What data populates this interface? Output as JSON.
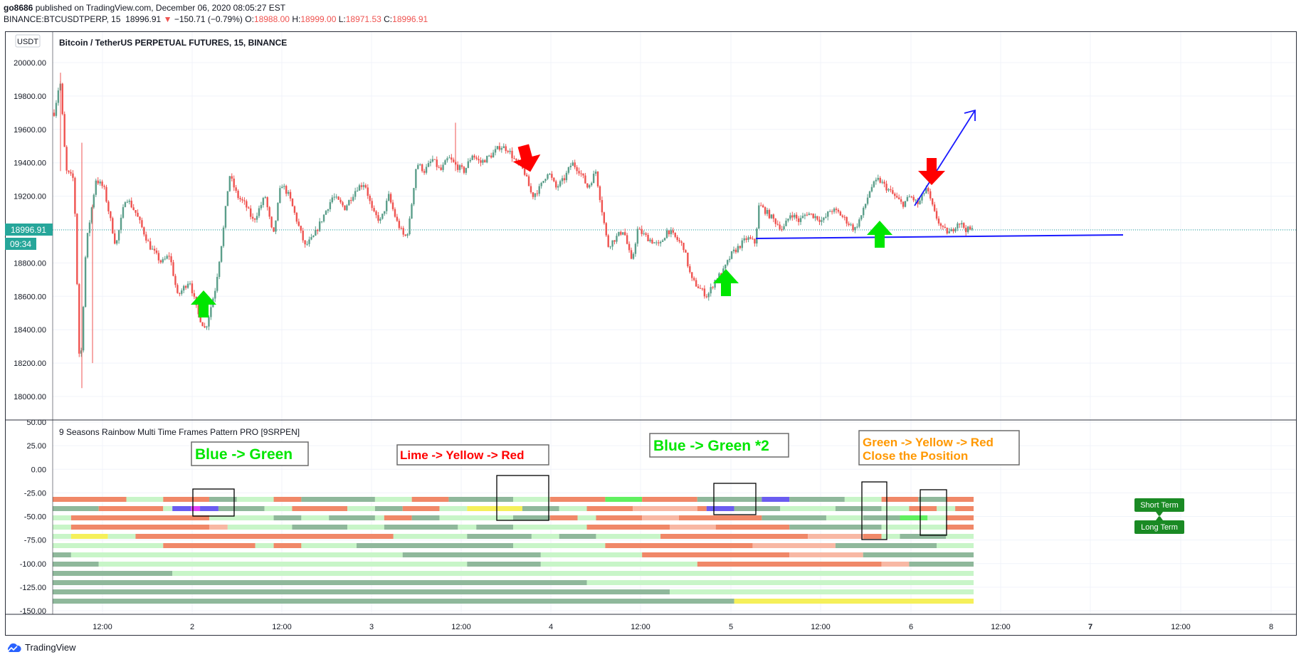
{
  "header": {
    "publisher": "go8686",
    "published_text": "published on TradingView.com, December 06, 2020 08:05:27 EST",
    "symbol_line": "BINANCE:BTCUSDTPERP, 15",
    "last": "18996.91",
    "change": "−150.71 (−0.79%)",
    "o_label": "O:",
    "o": "18988.00",
    "h_label": "H:",
    "h": "18999.00",
    "l_label": "L:",
    "l": "18971.53",
    "c_label": "C:",
    "c": "18996.91"
  },
  "footer": {
    "brand": "TradingView"
  },
  "colors": {
    "up": "#26a69a",
    "down": "#ef5350",
    "dark_green": "#8fb89b",
    "light_green": "#c8f5c8",
    "salmon": "#f08868",
    "light_salmon": "#f8b8a4",
    "yellow": "#f5f05a",
    "lime": "#60f060",
    "blue": "#6a5cf0",
    "magenta": "#e040fb",
    "annot_green": "#00e600",
    "annot_red": "#ff0000",
    "annot_orange": "#ff9800"
  },
  "chart_data": [
    {
      "type": "candlestick",
      "title": "Bitcoin / TetherUS PERPETUAL FUTURES, 15, BINANCE",
      "currency_badge": "USDT",
      "y_ticks": [
        "20000.00",
        "19800.00",
        "19600.00",
        "19400.00",
        "19200.00",
        "19000.00",
        "18800.00",
        "18600.00",
        "18400.00",
        "18200.00",
        "18000.00"
      ],
      "ylim": [
        17950,
        20150
      ],
      "x_ticks": [
        "12:00",
        "2",
        "12:00",
        "3",
        "12:00",
        "4",
        "12:00",
        "5",
        "12:00",
        "6",
        "12:00",
        "7",
        "12:00",
        "8"
      ],
      "price_label": "18996.91",
      "countdown_label": "09:34",
      "last_price": 18996.91,
      "close_path": [
        [
          0,
          19700
        ],
        [
          0.6,
          19900
        ],
        [
          1.2,
          19350
        ],
        [
          2.0,
          19300
        ],
        [
          2.6,
          18100
        ],
        [
          3.2,
          18900
        ],
        [
          4.2,
          19300
        ],
        [
          5.0,
          19250
        ],
        [
          6.2,
          18900
        ],
        [
          7.2,
          19200
        ],
        [
          8.2,
          19100
        ],
        [
          9.6,
          18900
        ],
        [
          10.8,
          18800
        ],
        [
          11.6,
          18850
        ],
        [
          12.4,
          18600
        ],
        [
          13.6,
          18700
        ],
        [
          14.4,
          18500
        ],
        [
          15.2,
          18400
        ],
        [
          16.2,
          18650
        ],
        [
          17.0,
          19000
        ],
        [
          17.6,
          19330
        ],
        [
          18.4,
          19200
        ],
        [
          19.2,
          19150
        ],
        [
          20.0,
          19050
        ],
        [
          21.2,
          19200
        ],
        [
          22.0,
          18950
        ],
        [
          22.8,
          19280
        ],
        [
          23.6,
          19200
        ],
        [
          24.4,
          19050
        ],
        [
          25.2,
          18900
        ],
        [
          26.0,
          18950
        ],
        [
          27.2,
          19100
        ],
        [
          28.0,
          19200
        ],
        [
          29.2,
          19130
        ],
        [
          30.4,
          19250
        ],
        [
          31.2,
          19280
        ],
        [
          32.0,
          19100
        ],
        [
          32.8,
          19050
        ],
        [
          33.6,
          19200
        ],
        [
          34.4,
          19050
        ],
        [
          35.2,
          18950
        ],
        [
          35.6,
          19000
        ],
        [
          36.4,
          19400
        ],
        [
          37.2,
          19350
        ],
        [
          38.0,
          19420
        ],
        [
          38.8,
          19350
        ],
        [
          39.6,
          19430
        ],
        [
          40.4,
          19380
        ],
        [
          41.2,
          19350
        ],
        [
          42.0,
          19450
        ],
        [
          42.8,
          19400
        ],
        [
          44.0,
          19450
        ],
        [
          44.8,
          19500
        ],
        [
          45.6,
          19480
        ],
        [
          46.4,
          19400
        ],
        [
          47.2,
          19350
        ],
        [
          48.0,
          19200
        ],
        [
          48.8,
          19250
        ],
        [
          49.6,
          19350
        ],
        [
          50.4,
          19250
        ],
        [
          51.2,
          19300
        ],
        [
          52.0,
          19400
        ],
        [
          52.8,
          19350
        ],
        [
          53.6,
          19250
        ],
        [
          54.4,
          19350
        ],
        [
          55.2,
          19050
        ],
        [
          55.6,
          18900
        ],
        [
          56.4,
          18950
        ],
        [
          57.2,
          19000
        ],
        [
          58.0,
          18800
        ],
        [
          58.6,
          19000
        ],
        [
          59.6,
          18950
        ],
        [
          60.8,
          18900
        ],
        [
          61.6,
          19000
        ],
        [
          62.4,
          18950
        ],
        [
          63.2,
          18900
        ],
        [
          64.0,
          18700
        ],
        [
          64.8,
          18650
        ],
        [
          65.6,
          18600
        ],
        [
          66.4,
          18700
        ],
        [
          67.2,
          18750
        ],
        [
          68.0,
          18850
        ],
        [
          68.8,
          18900
        ],
        [
          69.6,
          18950
        ],
        [
          70.4,
          18920
        ],
        [
          70.8,
          19150
        ],
        [
          71.6,
          19100
        ],
        [
          72.4,
          19050
        ],
        [
          73.2,
          19000
        ],
        [
          74.0,
          19100
        ],
        [
          74.8,
          19050
        ],
        [
          75.6,
          19100
        ],
        [
          76.4,
          19080
        ],
        [
          77.2,
          19050
        ],
        [
          78.0,
          19120
        ],
        [
          78.8,
          19100
        ],
        [
          79.6,
          19050
        ],
        [
          80.4,
          19000
        ],
        [
          81.2,
          19100
        ],
        [
          82.0,
          19250
        ],
        [
          82.8,
          19300
        ],
        [
          83.6,
          19250
        ],
        [
          84.4,
          19200
        ],
        [
          85.2,
          19150
        ],
        [
          86.0,
          19200
        ],
        [
          86.8,
          19150
        ],
        [
          87.6,
          19250
        ],
        [
          88.4,
          19100
        ],
        [
          89.2,
          19000
        ],
        [
          90.0,
          18980
        ],
        [
          90.8,
          19050
        ],
        [
          91.6,
          19000
        ],
        [
          92.2,
          18997
        ]
      ]
    },
    {
      "type": "heatmap",
      "title": "9 Seasons Rainbow Multi Time Frames Pattern PRO [9SRPEN]",
      "y_ticks": [
        "50.00",
        "25.00",
        "0.00",
        "-25.00",
        "-50.00",
        "-75.00",
        "-100.00",
        "-125.00",
        "-150.00"
      ],
      "ylim": [
        -153,
        52
      ],
      "rows": 12
    }
  ],
  "annotations": {
    "label_1": "Blue -> Green",
    "label_2": "Lime -> Yellow -> Red",
    "label_3": "Blue -> Green *2",
    "label_4a": "Green -> Yellow -> Red",
    "label_4b": "Close the Position",
    "legend_short": "Short Term",
    "legend_long": "Long Term"
  }
}
